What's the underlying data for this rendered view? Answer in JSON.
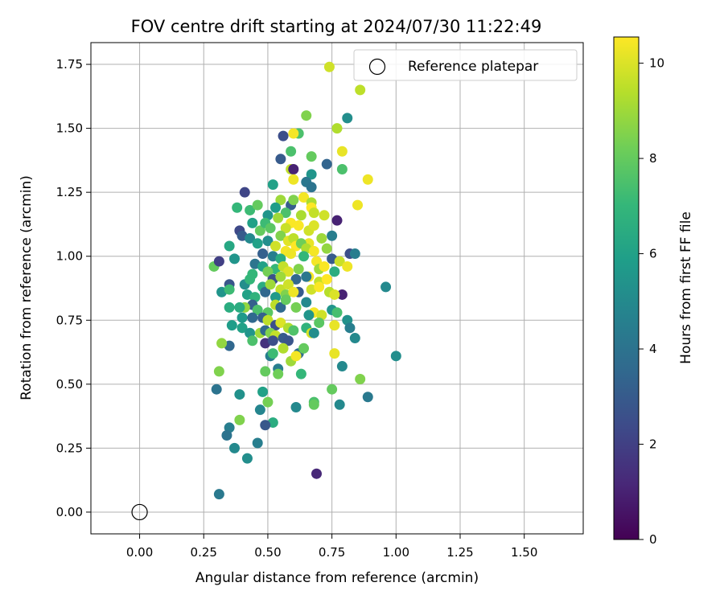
{
  "chart_data": {
    "type": "scatter",
    "title": "FOV centre drift starting at 2024/07/30 11:22:49",
    "xlabel": "Angular distance from reference (arcmin)",
    "ylabel": "Rotation from reference (arcmin)",
    "xlim": [
      -0.19,
      1.73
    ],
    "ylim": [
      -0.085,
      1.835
    ],
    "xticks": [
      0.0,
      0.25,
      0.5,
      0.75,
      1.0,
      1.25,
      1.5
    ],
    "yticks": [
      0.0,
      0.25,
      0.5,
      0.75,
      1.0,
      1.25,
      1.5,
      1.75
    ],
    "xtick_labels": [
      "0.00",
      "0.25",
      "0.50",
      "0.75",
      "1.00",
      "1.25",
      "1.50"
    ],
    "ytick_labels": [
      "0.00",
      "0.25",
      "0.50",
      "0.75",
      "1.00",
      "1.25",
      "1.50",
      "1.75"
    ],
    "grid": true,
    "legend": {
      "entries": [
        "Reference platepar"
      ],
      "placement": "upper right"
    },
    "colorbar": {
      "label": "Hours from first FF file",
      "colormap": "viridis",
      "range": [
        0,
        10.55
      ],
      "ticks": [
        0,
        2,
        4,
        6,
        8,
        10
      ],
      "tick_labels": [
        "0",
        "2",
        "4",
        "6",
        "8",
        "10"
      ]
    },
    "reference_point": {
      "x": 0.0,
      "y": 0.0
    },
    "points": [
      [
        0.74,
        1.74,
        9.8
      ],
      [
        0.86,
        1.65,
        9.5
      ],
      [
        0.65,
        1.55,
        8.5
      ],
      [
        0.81,
        1.54,
        5.2
      ],
      [
        0.56,
        1.47,
        2.5
      ],
      [
        0.62,
        1.48,
        7.5
      ],
      [
        0.77,
        1.5,
        9.3
      ],
      [
        0.6,
        1.48,
        10.4
      ],
      [
        0.59,
        1.41,
        7.5
      ],
      [
        0.67,
        1.39,
        8.0
      ],
      [
        0.79,
        1.41,
        10.2
      ],
      [
        0.55,
        1.38,
        3.0
      ],
      [
        0.73,
        1.36,
        3.4
      ],
      [
        0.79,
        1.34,
        7.5
      ],
      [
        0.59,
        1.34,
        9.5
      ],
      [
        0.6,
        1.34,
        1.0
      ],
      [
        0.6,
        1.3,
        10.3
      ],
      [
        0.67,
        1.32,
        5.5
      ],
      [
        0.65,
        1.29,
        4.2
      ],
      [
        0.67,
        1.27,
        4.0
      ],
      [
        0.89,
        1.3,
        10.3
      ],
      [
        0.41,
        1.25,
        2.2
      ],
      [
        0.52,
        1.28,
        6.0
      ],
      [
        0.55,
        1.22,
        9.0
      ],
      [
        0.59,
        1.2,
        3.1
      ],
      [
        0.6,
        1.22,
        8.5
      ],
      [
        0.64,
        1.23,
        10.4
      ],
      [
        0.67,
        1.21,
        9.2
      ],
      [
        0.67,
        1.19,
        10.6
      ],
      [
        0.38,
        1.19,
        7.0
      ],
      [
        0.43,
        1.18,
        7.2
      ],
      [
        0.46,
        1.2,
        8.0
      ],
      [
        0.53,
        1.19,
        5.8
      ],
      [
        0.57,
        1.17,
        7.5
      ],
      [
        0.63,
        1.16,
        9.2
      ],
      [
        0.68,
        1.17,
        9.6
      ],
      [
        0.77,
        1.14,
        1.0
      ],
      [
        0.85,
        1.2,
        10.3
      ],
      [
        0.72,
        1.16,
        9.8
      ],
      [
        0.5,
        1.16,
        5.5
      ],
      [
        0.54,
        1.15,
        9.0
      ],
      [
        0.59,
        1.13,
        10.5
      ],
      [
        0.44,
        1.13,
        6.0
      ],
      [
        0.47,
        1.1,
        8.0
      ],
      [
        0.49,
        1.13,
        7.2
      ],
      [
        0.51,
        1.11,
        7.8
      ],
      [
        0.57,
        1.11,
        9.7
      ],
      [
        0.62,
        1.12,
        10.5
      ],
      [
        0.66,
        1.1,
        9.8
      ],
      [
        0.68,
        1.12,
        10.0
      ],
      [
        0.39,
        1.1,
        2.3
      ],
      [
        0.4,
        1.08,
        3.0
      ],
      [
        0.43,
        1.07,
        5.0
      ],
      [
        0.55,
        1.08,
        8.5
      ],
      [
        0.58,
        1.06,
        10.1
      ],
      [
        0.6,
        1.07,
        9.5
      ],
      [
        0.66,
        1.05,
        10.2
      ],
      [
        0.71,
        1.07,
        9.0
      ],
      [
        0.75,
        1.08,
        4.5
      ],
      [
        0.46,
        1.05,
        6.0
      ],
      [
        0.5,
        1.06,
        5.2
      ],
      [
        0.53,
        1.04,
        9.8
      ],
      [
        0.57,
        1.02,
        10.4
      ],
      [
        0.61,
        1.04,
        10.6
      ],
      [
        0.63,
        1.05,
        8.2
      ],
      [
        0.65,
        1.03,
        9.3
      ],
      [
        0.68,
        1.02,
        10.4
      ],
      [
        0.73,
        1.03,
        8.8
      ],
      [
        0.82,
        1.01,
        2.5
      ],
      [
        0.35,
        1.04,
        6.3
      ],
      [
        0.48,
        1.01,
        3.2
      ],
      [
        0.52,
        1.0,
        4.5
      ],
      [
        0.55,
        0.99,
        6.5
      ],
      [
        0.59,
        1.01,
        10.3
      ],
      [
        0.64,
        1.0,
        7.0
      ],
      [
        0.69,
        0.98,
        10.4
      ],
      [
        0.75,
        0.99,
        3.0
      ],
      [
        0.78,
        0.98,
        9.7
      ],
      [
        0.84,
        1.01,
        4.5
      ],
      [
        0.29,
        0.96,
        8.0
      ],
      [
        0.31,
        0.98,
        2.0
      ],
      [
        0.37,
        0.99,
        5.5
      ],
      [
        0.45,
        0.97,
        4.1
      ],
      [
        0.48,
        0.96,
        6.0
      ],
      [
        0.53,
        0.95,
        7.0
      ],
      [
        0.56,
        0.96,
        9.6
      ],
      [
        0.58,
        0.94,
        10.0
      ],
      [
        0.62,
        0.95,
        8.5
      ],
      [
        0.66,
        0.92,
        10.4
      ],
      [
        0.7,
        0.95,
        9.0
      ],
      [
        0.72,
        0.96,
        10.5
      ],
      [
        0.76,
        0.94,
        6.5
      ],
      [
        0.81,
        0.96,
        10.3
      ],
      [
        0.44,
        0.93,
        7.0
      ],
      [
        0.5,
        0.94,
        8.3
      ],
      [
        0.52,
        0.91,
        2.6
      ],
      [
        0.55,
        0.92,
        9.0
      ],
      [
        0.61,
        0.91,
        3.5
      ],
      [
        0.65,
        0.92,
        4.2
      ],
      [
        0.7,
        0.9,
        9.6
      ],
      [
        0.73,
        0.91,
        10.6
      ],
      [
        0.96,
        0.88,
        5.0
      ],
      [
        0.32,
        0.86,
        5.5
      ],
      [
        0.35,
        0.89,
        2.8
      ],
      [
        0.41,
        0.89,
        5.2
      ],
      [
        0.43,
        0.91,
        7.0
      ],
      [
        0.48,
        0.88,
        6.5
      ],
      [
        0.49,
        0.86,
        3.5
      ],
      [
        0.51,
        0.89,
        9.0
      ],
      [
        0.55,
        0.87,
        9.6
      ],
      [
        0.58,
        0.89,
        9.8
      ],
      [
        0.62,
        0.86,
        3.0
      ],
      [
        0.67,
        0.87,
        9.8
      ],
      [
        0.7,
        0.88,
        10.5
      ],
      [
        0.74,
        0.86,
        9.4
      ],
      [
        0.79,
        0.85,
        1.0
      ],
      [
        0.76,
        0.85,
        10.0
      ],
      [
        0.35,
        0.87,
        7.2
      ],
      [
        0.42,
        0.85,
        6.0
      ],
      [
        0.45,
        0.84,
        6.8
      ],
      [
        0.53,
        0.84,
        5.7
      ],
      [
        0.57,
        0.85,
        8.5
      ],
      [
        0.6,
        0.86,
        10.3
      ],
      [
        0.65,
        0.82,
        5.0
      ],
      [
        0.44,
        0.81,
        3.2
      ],
      [
        0.46,
        0.79,
        7.5
      ],
      [
        0.41,
        0.8,
        8.8
      ],
      [
        0.39,
        0.8,
        6.5
      ],
      [
        0.35,
        0.8,
        6.5
      ],
      [
        0.53,
        0.81,
        9.5
      ],
      [
        0.55,
        0.8,
        3.6
      ],
      [
        0.57,
        0.83,
        8.0
      ],
      [
        0.61,
        0.8,
        8.3
      ],
      [
        0.68,
        0.78,
        10.4
      ],
      [
        0.71,
        0.77,
        9.8
      ],
      [
        0.75,
        0.79,
        5.5
      ],
      [
        0.77,
        0.78,
        7.4
      ],
      [
        0.66,
        0.77,
        5.5
      ],
      [
        0.5,
        0.78,
        7.8
      ],
      [
        0.4,
        0.76,
        5.7
      ],
      [
        0.44,
        0.76,
        3.6
      ],
      [
        0.48,
        0.76,
        3.2
      ],
      [
        0.5,
        0.75,
        9.5
      ],
      [
        0.36,
        0.73,
        5.8
      ],
      [
        0.4,
        0.72,
        6.0
      ],
      [
        0.53,
        0.73,
        2.5
      ],
      [
        0.55,
        0.74,
        10.0
      ],
      [
        0.58,
        0.72,
        9.3
      ],
      [
        0.6,
        0.71,
        7.6
      ],
      [
        0.7,
        0.74,
        7.8
      ],
      [
        0.76,
        0.73,
        10.2
      ],
      [
        0.81,
        0.75,
        5.3
      ],
      [
        0.82,
        0.72,
        4.5
      ],
      [
        0.43,
        0.7,
        5.5
      ],
      [
        0.47,
        0.7,
        9.0
      ],
      [
        0.49,
        0.71,
        3.6
      ],
      [
        0.51,
        0.7,
        8.5
      ],
      [
        0.53,
        0.69,
        9.6
      ],
      [
        0.56,
        0.68,
        3.0
      ],
      [
        0.58,
        0.67,
        2.8
      ],
      [
        0.65,
        0.72,
        6.8
      ],
      [
        0.67,
        0.7,
        9.9
      ],
      [
        0.68,
        0.7,
        5.2
      ],
      [
        0.84,
        0.68,
        5.0
      ],
      [
        0.35,
        0.65,
        3.5
      ],
      [
        0.32,
        0.66,
        8.8
      ],
      [
        0.44,
        0.67,
        7.5
      ],
      [
        0.49,
        0.66,
        1.5
      ],
      [
        0.52,
        0.67,
        2.5
      ],
      [
        0.56,
        0.64,
        9.3
      ],
      [
        0.62,
        0.62,
        3.8
      ],
      [
        0.64,
        0.64,
        8.0
      ],
      [
        0.51,
        0.61,
        4.5
      ],
      [
        0.52,
        0.62,
        7.2
      ],
      [
        0.59,
        0.59,
        9.0
      ],
      [
        0.61,
        0.61,
        10.4
      ],
      [
        0.76,
        0.62,
        10.2
      ],
      [
        1.0,
        0.61,
        5.2
      ],
      [
        0.54,
        0.56,
        4.5
      ],
      [
        0.54,
        0.54,
        8.2
      ],
      [
        0.31,
        0.55,
        8.5
      ],
      [
        0.49,
        0.55,
        8.0
      ],
      [
        0.63,
        0.54,
        7.0
      ],
      [
        0.79,
        0.57,
        5.0
      ],
      [
        0.86,
        0.52,
        8.5
      ],
      [
        0.3,
        0.48,
        4.0
      ],
      [
        0.39,
        0.46,
        5.3
      ],
      [
        0.48,
        0.47,
        6.0
      ],
      [
        0.75,
        0.48,
        8.0
      ],
      [
        0.89,
        0.45,
        4.3
      ],
      [
        0.5,
        0.43,
        8.3
      ],
      [
        0.61,
        0.41,
        5.0
      ],
      [
        0.68,
        0.43,
        7.5
      ],
      [
        0.68,
        0.42,
        8.0
      ],
      [
        0.78,
        0.42,
        5.0
      ],
      [
        0.47,
        0.4,
        4.8
      ],
      [
        0.52,
        0.35,
        6.5
      ],
      [
        0.39,
        0.36,
        8.5
      ],
      [
        0.35,
        0.33,
        4.5
      ],
      [
        0.49,
        0.34,
        2.9
      ],
      [
        0.34,
        0.3,
        4.0
      ],
      [
        0.46,
        0.27,
        4.5
      ],
      [
        0.37,
        0.25,
        5.0
      ],
      [
        0.42,
        0.21,
        5.2
      ],
      [
        0.69,
        0.15,
        1.2
      ],
      [
        0.31,
        0.07,
        4.3
      ]
    ]
  }
}
